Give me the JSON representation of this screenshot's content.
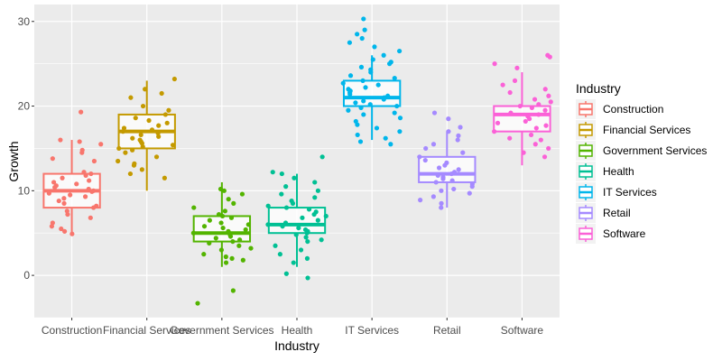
{
  "chart_data": {
    "type": "boxplot",
    "xlabel": "Industry",
    "ylabel": "Growth",
    "ylim": [
      -5,
      32
    ],
    "yticks": [
      0,
      10,
      20,
      30
    ],
    "grid": true,
    "legend": {
      "title": "Industry",
      "placement": "right"
    },
    "categories": [
      "Construction",
      "Financial Services",
      "Government Services",
      "Health",
      "IT Services",
      "Retail",
      "Software"
    ],
    "colors": [
      "#F8766D",
      "#C49A00",
      "#53B400",
      "#00C094",
      "#00B6EB",
      "#A58AFF",
      "#FB61D7"
    ],
    "boxes": [
      {
        "q1": 8,
        "median": 10,
        "q3": 12,
        "whisker_low": 5,
        "whisker_high": 16
      },
      {
        "q1": 15,
        "median": 17,
        "q3": 19,
        "whisker_low": 10,
        "whisker_high": 23
      },
      {
        "q1": 4,
        "median": 5,
        "q3": 7,
        "whisker_low": 1,
        "whisker_high": 11
      },
      {
        "q1": 5,
        "median": 6,
        "q3": 8,
        "whisker_low": 1,
        "whisker_high": 12
      },
      {
        "q1": 20,
        "median": 21,
        "q3": 23,
        "whisker_low": 16,
        "whisker_high": 26
      },
      {
        "q1": 11,
        "median": 12,
        "q3": 14,
        "whisker_low": 8,
        "whisker_high": 17
      },
      {
        "q1": 17,
        "median": 19,
        "q3": 20,
        "whisker_low": 13,
        "whisker_high": 24
      }
    ],
    "points": [
      [
        19.3,
        16.0,
        15.8,
        15.5,
        14.8,
        14.5,
        13.8,
        13.5,
        12.2,
        12.0,
        11.8,
        11.5,
        11.2,
        11.0,
        10.8,
        10.6,
        10.4,
        10.2,
        10.0,
        9.9,
        9.7,
        9.5,
        9.3,
        9.1,
        8.8,
        8.5,
        8.2,
        8.0,
        7.6,
        7.2,
        6.8,
        6.2,
        5.8,
        5.5,
        5.2,
        4.9
      ],
      [
        23.2,
        22.0,
        21.5,
        21.0,
        20.0,
        19.5,
        19.0,
        18.6,
        18.3,
        18.0,
        17.7,
        17.4,
        17.2,
        17.0,
        16.8,
        16.6,
        16.4,
        16.2,
        16.0,
        15.8,
        15.6,
        15.4,
        15.2,
        15.0,
        14.8,
        14.5,
        14.0,
        13.5,
        13.2,
        13.0,
        12.5,
        12.0,
        11.5
      ],
      [
        10.2,
        10.0,
        9.6,
        9.0,
        8.5,
        8.0,
        7.6,
        7.2,
        7.0,
        6.8,
        6.5,
        6.2,
        6.0,
        5.8,
        5.6,
        5.4,
        5.2,
        5.0,
        4.8,
        4.6,
        4.4,
        4.2,
        4.0,
        3.8,
        3.5,
        3.2,
        3.0,
        2.5,
        2.2,
        2.0,
        1.8,
        1.5,
        -1.8,
        -3.3
      ],
      [
        14.0,
        12.2,
        12.0,
        11.5,
        11.0,
        10.5,
        10.0,
        9.6,
        9.2,
        8.8,
        8.5,
        8.2,
        8.0,
        7.8,
        7.5,
        7.2,
        7.0,
        6.8,
        6.5,
        6.2,
        6.0,
        5.8,
        5.6,
        5.4,
        5.2,
        5.0,
        4.8,
        4.5,
        4.2,
        4.0,
        3.5,
        3.0,
        2.5,
        2.0,
        1.5,
        0.2,
        -0.3
      ],
      [
        30.3,
        29.0,
        28.5,
        28.0,
        27.5,
        27.0,
        26.5,
        26.0,
        25.5,
        25.2,
        25.0,
        24.6,
        24.3,
        24.0,
        23.6,
        23.3,
        23.0,
        22.7,
        22.5,
        22.2,
        22.0,
        21.8,
        21.6,
        21.4,
        21.2,
        21.0,
        20.8,
        20.6,
        20.4,
        20.2,
        20.0,
        19.8,
        19.5,
        19.2,
        19.0,
        18.6,
        18.2,
        17.8,
        17.4,
        17.0,
        16.6,
        16.2,
        15.8,
        15.5
      ],
      [
        19.2,
        18.5,
        17.5,
        17.0,
        16.5,
        16.0,
        15.5,
        15.0,
        14.5,
        14.0,
        13.6,
        13.3,
        13.0,
        12.7,
        12.5,
        12.2,
        12.0,
        11.8,
        11.6,
        11.4,
        11.2,
        11.0,
        10.8,
        10.5,
        10.2,
        10.0,
        9.7,
        9.3,
        8.9,
        8.5,
        8.0
      ],
      [
        26.0,
        25.8,
        25.0,
        24.5,
        23.0,
        22.5,
        22.0,
        21.6,
        21.2,
        20.8,
        20.5,
        20.2,
        20.0,
        19.8,
        19.5,
        19.2,
        19.0,
        18.8,
        18.5,
        18.2,
        18.0,
        17.7,
        17.4,
        17.0,
        16.6,
        16.2,
        16.0,
        15.5,
        15.0,
        14.5,
        14.0
      ]
    ]
  }
}
